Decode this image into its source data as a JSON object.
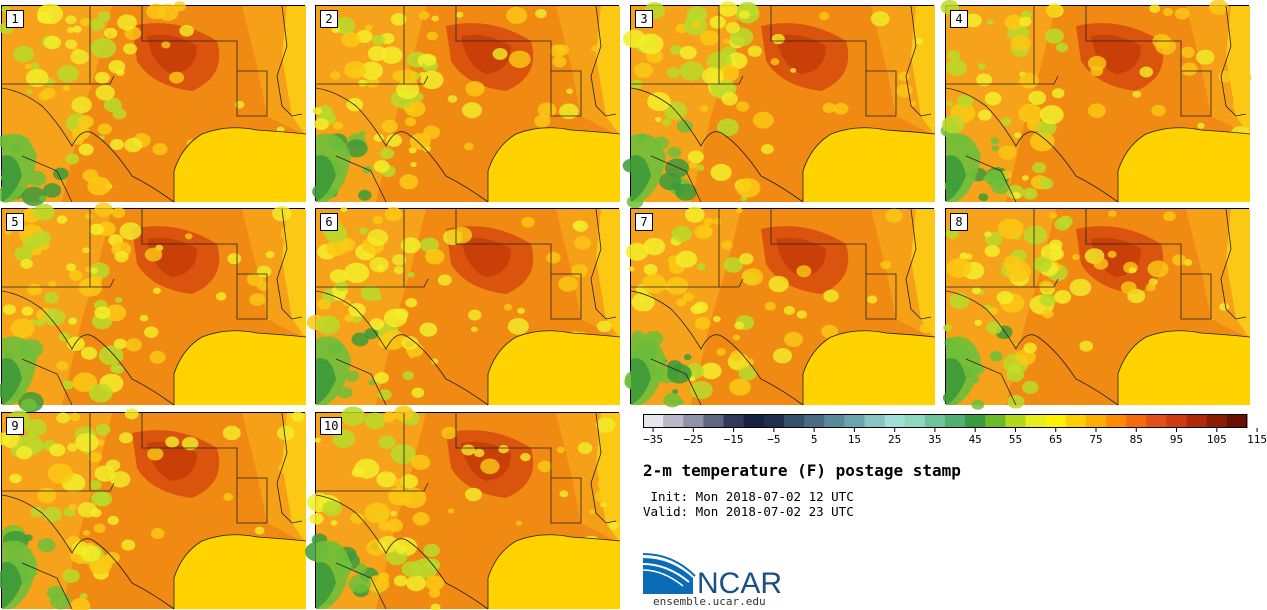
{
  "panels": [
    {
      "label": "1"
    },
    {
      "label": "2"
    },
    {
      "label": "3"
    },
    {
      "label": "4"
    },
    {
      "label": "5"
    },
    {
      "label": "6"
    },
    {
      "label": "7"
    },
    {
      "label": "8"
    },
    {
      "label": "9"
    },
    {
      "label": "10"
    }
  ],
  "colorbar": {
    "ticks": [
      "−35",
      "−25",
      "−15",
      "−5",
      "5",
      "15",
      "25",
      "35",
      "45",
      "55",
      "65",
      "75",
      "85",
      "95",
      "105",
      "115"
    ],
    "colors": [
      "#e6e6ef",
      "#b9b9c9",
      "#8e93a5",
      "#5f6780",
      "#2e3a58",
      "#172240",
      "#1f2e4c",
      "#34506a",
      "#4a6a85",
      "#5a8a9a",
      "#6aa5ad",
      "#86c5c3",
      "#9fdfd6",
      "#8ed8c0",
      "#6cc49a",
      "#4fb070",
      "#3a9a3e",
      "#6cba2a",
      "#b2d81e",
      "#e8ee1a",
      "#fff200",
      "#ffd000",
      "#ffae00",
      "#ff8c00",
      "#f36a10",
      "#e0501a",
      "#cc3c10",
      "#b02a08",
      "#8e1c04",
      "#6a1000"
    ]
  },
  "title": "2-m temperature (F) postage stamp",
  "init": " Init: Mon 2018-07-02 12 UTC",
  "valid": "Valid: Mon 2018-07-02 23 UTC",
  "logo": {
    "text": "NCAR",
    "url": "ensemble.ucar.edu"
  },
  "map_colors": {
    "land_hot": "#f6a21a",
    "land_base": "#f08a12",
    "very_hot": "#d64a0e",
    "hotspot": "#c43a08",
    "warm": "#fbc914",
    "mild": "#f3ee2a",
    "cool": "#b8da2a",
    "cooler": "#6fbf3a",
    "coolest": "#3d9a3a",
    "gulf": "#ffd200",
    "border": "#222222"
  }
}
